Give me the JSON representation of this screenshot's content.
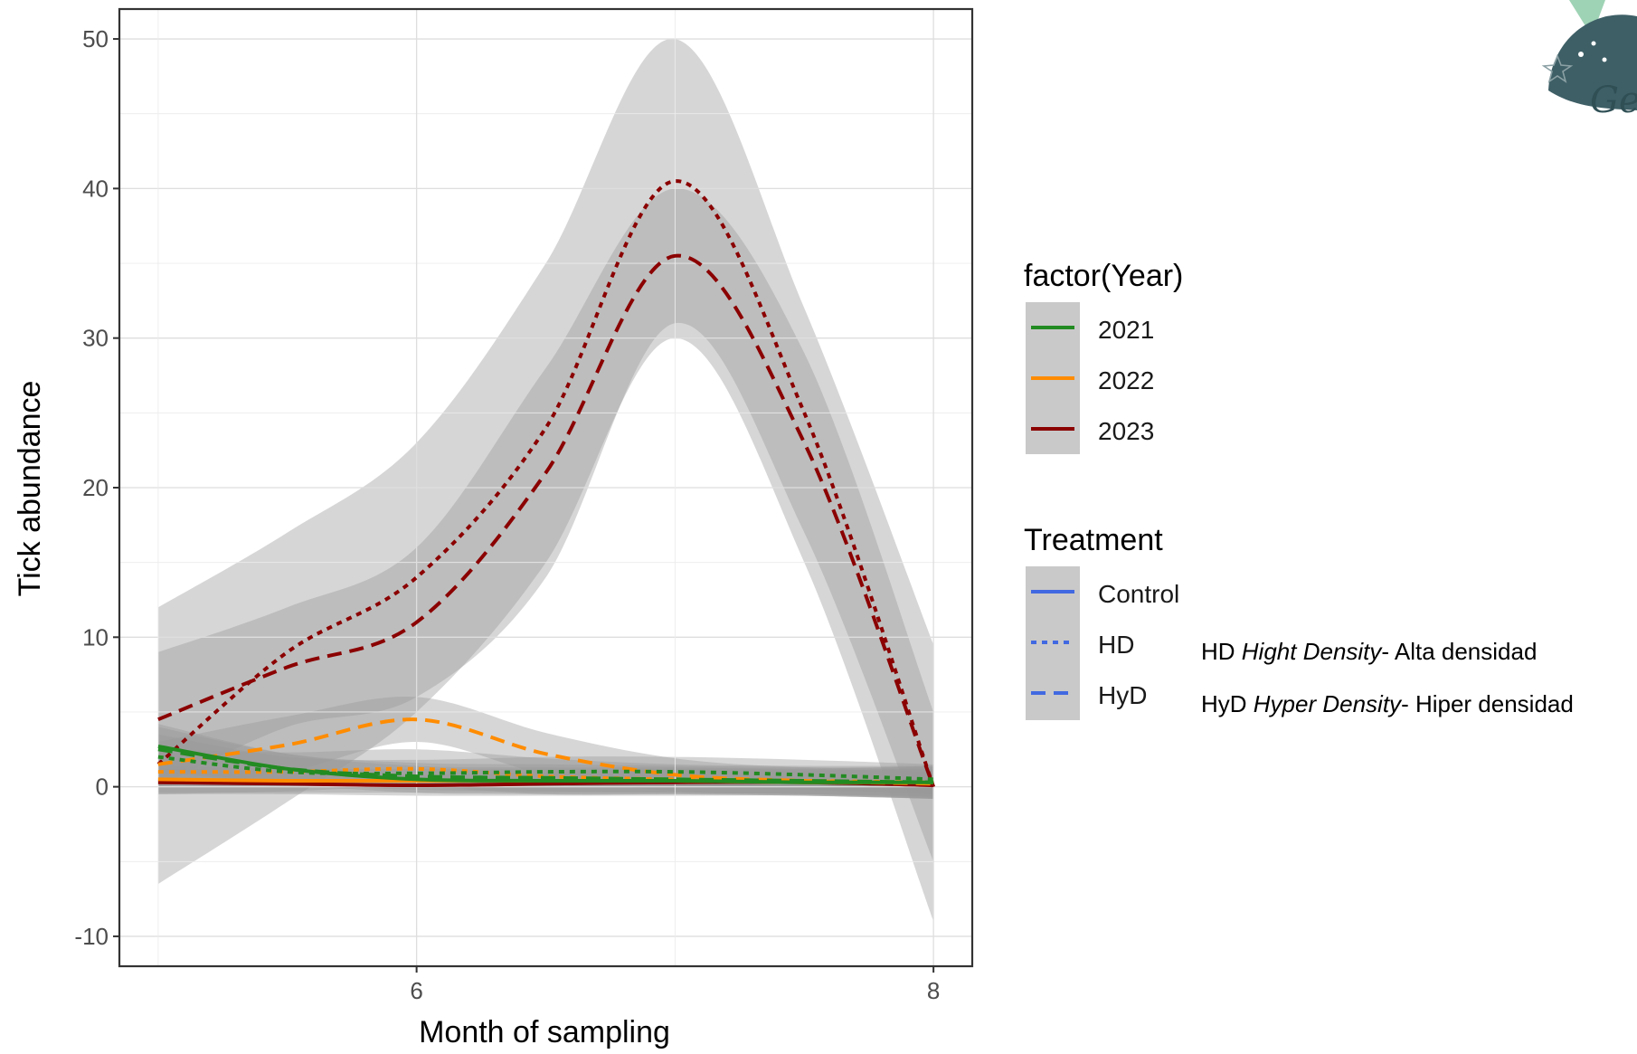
{
  "chart_data": {
    "type": "line",
    "xlabel": "Month of sampling",
    "ylabel": "Tick abundance",
    "xlim": [
      5,
      8
    ],
    "ylim": [
      -12,
      52
    ],
    "x_ticks": [
      6,
      8
    ],
    "y_ticks": [
      -10,
      0,
      10,
      20,
      30,
      40,
      50
    ],
    "grid": true,
    "legend_placement": "right",
    "legends": [
      {
        "title": "factor(Year)",
        "entries": [
          {
            "label": "2021",
            "color": "#228B22"
          },
          {
            "label": "2022",
            "color": "#FF8C00"
          },
          {
            "label": "2023",
            "color": "#8B0000"
          }
        ]
      },
      {
        "title": "Treatment",
        "entries": [
          {
            "label": "Control",
            "linetype": "solid",
            "color": "#4169E1"
          },
          {
            "label": "HD",
            "linetype": "dotted",
            "color": "#4169E1"
          },
          {
            "label": "HyD",
            "linetype": "dashed",
            "color": "#4169E1"
          }
        ]
      }
    ],
    "annotations": [
      {
        "key": "HD",
        "prefix": "HD ",
        "term": "Hight Density",
        "suffix": "-  Alta densidad"
      },
      {
        "key": "HyD",
        "prefix": "HyD ",
        "term": "Hyper Density",
        "suffix": "- Hiper densidad"
      }
    ],
    "series": [
      {
        "year": "2023",
        "treatment": "HD",
        "color": "#8B0000",
        "linetype": "dotted",
        "x": [
          5,
          5.5,
          6,
          6.5,
          7,
          7.5,
          8
        ],
        "y": [
          1.5,
          9,
          14,
          24,
          40.5,
          25,
          0
        ],
        "band": [
          [
            -6.5,
            12
          ],
          [
            -1,
            17
          ],
          [
            5,
            23
          ],
          [
            15,
            35
          ],
          [
            30,
            50
          ],
          [
            15,
            32
          ],
          [
            -9,
            9.5
          ]
        ]
      },
      {
        "year": "2023",
        "treatment": "HyD",
        "color": "#8B0000",
        "linetype": "dashed",
        "x": [
          5,
          5.5,
          6,
          6.5,
          7,
          7.5,
          8
        ],
        "y": [
          4.5,
          8,
          11,
          21,
          35.5,
          23,
          0
        ],
        "band": [
          [
            0,
            9
          ],
          [
            4,
            12
          ],
          [
            6,
            16
          ],
          [
            14,
            28
          ],
          [
            31,
            40
          ],
          [
            17,
            29
          ],
          [
            -5,
            5
          ]
        ]
      },
      {
        "year": "2023",
        "treatment": "Control",
        "color": "#8B0000",
        "linetype": "solid",
        "x": [
          5,
          5.5,
          6,
          6.5,
          7,
          7.5,
          8
        ],
        "y": [
          0.3,
          0.2,
          0.1,
          0.2,
          0.3,
          0.3,
          0.1
        ],
        "band": [
          [
            -0.5,
            1.2
          ],
          [
            -0.5,
            1
          ],
          [
            -0.6,
            0.8
          ],
          [
            -0.6,
            1
          ],
          [
            -0.6,
            1.2
          ],
          [
            -0.6,
            1.2
          ],
          [
            -0.8,
            1
          ]
        ]
      },
      {
        "year": "2022",
        "treatment": "HyD",
        "color": "#FF8C00",
        "linetype": "dashed",
        "x": [
          5,
          5.5,
          6,
          6.5,
          7,
          7.5,
          8
        ],
        "y": [
          1.5,
          2.8,
          4.5,
          2.2,
          0.8,
          0.4,
          0.2
        ],
        "band": [
          [
            0,
            3
          ],
          [
            1,
            4.7
          ],
          [
            3,
            6
          ],
          [
            0.8,
            3.6
          ],
          [
            -0.3,
            1.9
          ],
          [
            -0.5,
            1.3
          ],
          [
            -0.8,
            1.2
          ]
        ]
      },
      {
        "year": "2022",
        "treatment": "HD",
        "color": "#FF8C00",
        "linetype": "dotted",
        "x": [
          5,
          5.5,
          6,
          6.5,
          7,
          7.5,
          8
        ],
        "y": [
          1,
          1,
          1.2,
          0.7,
          0.5,
          0.4,
          0.3
        ],
        "band": [
          [
            -0.5,
            2.5
          ],
          [
            -0.3,
            2.3
          ],
          [
            0,
            2.5
          ],
          [
            -0.5,
            1.9
          ],
          [
            -0.5,
            1.5
          ],
          [
            -0.6,
            1.4
          ],
          [
            -0.8,
            1.4
          ]
        ]
      },
      {
        "year": "2022",
        "treatment": "Control",
        "color": "#FF8C00",
        "linetype": "solid",
        "x": [
          5,
          5.5,
          6,
          6.5,
          7,
          7.5,
          8
        ],
        "y": [
          0.5,
          0.4,
          0.4,
          0.4,
          0.4,
          0.3,
          0.3
        ],
        "band": [
          [
            -0.4,
            1.4
          ],
          [
            -0.4,
            1.2
          ],
          [
            -0.4,
            1.2
          ],
          [
            -0.4,
            1.2
          ],
          [
            -0.4,
            1.2
          ],
          [
            -0.5,
            1.1
          ],
          [
            -0.6,
            1.2
          ]
        ]
      },
      {
        "year": "2021",
        "treatment": "HD",
        "color": "#228B22",
        "linetype": "dotted",
        "x": [
          5,
          5.5,
          6,
          6.5,
          7,
          7.5,
          8
        ],
        "y": [
          2,
          1,
          0.9,
          1,
          1,
          0.8,
          0.5
        ],
        "band": [
          [
            0.5,
            3.5
          ],
          [
            0,
            2
          ],
          [
            0,
            1.8
          ],
          [
            0,
            2
          ],
          [
            0,
            2
          ],
          [
            -0.2,
            1.8
          ],
          [
            -0.5,
            1.5
          ]
        ]
      },
      {
        "year": "2021",
        "treatment": "HyD",
        "color": "#228B22",
        "linetype": "dashed",
        "x": [
          5,
          5.5,
          6,
          6.5,
          7,
          7.5,
          8
        ],
        "y": [
          2.5,
          1.2,
          0.7,
          0.6,
          0.5,
          0.4,
          0.3
        ],
        "band": [
          [
            1,
            4
          ],
          [
            0.2,
            2.2
          ],
          [
            -0.2,
            1.6
          ],
          [
            -0.3,
            1.5
          ],
          [
            -0.4,
            1.4
          ],
          [
            -0.5,
            1.3
          ],
          [
            -0.7,
            1.3
          ]
        ]
      },
      {
        "year": "2021",
        "treatment": "Control",
        "color": "#228B22",
        "linetype": "solid",
        "x": [
          5,
          5.5,
          6,
          6.5,
          7,
          7.5,
          8
        ],
        "y": [
          2.7,
          1.2,
          0.5,
          0.4,
          0.4,
          0.3,
          0.3
        ],
        "band": [
          [
            1.2,
            4.2
          ],
          [
            0.2,
            2.2
          ],
          [
            -0.4,
            1.4
          ],
          [
            -0.5,
            1.3
          ],
          [
            -0.5,
            1.3
          ],
          [
            -0.6,
            1.2
          ],
          [
            -0.8,
            1.4
          ]
        ]
      }
    ]
  },
  "logo": {
    "text": "Gee"
  }
}
